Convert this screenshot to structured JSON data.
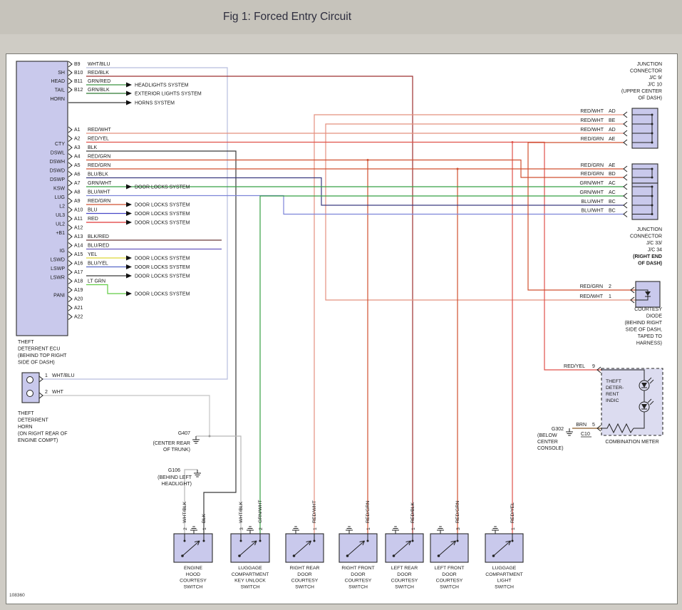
{
  "title": "Fig 1: Forced Entry Circuit",
  "figure_id": "108360",
  "palette": {
    "page_bg": "#cfccc5",
    "titlebar_bg": "#c6c3bb",
    "title_color": "#2e2e3e",
    "diagram_bg": "#ffffff",
    "component_fill": "#c9c9ec",
    "component_border": "#2a2a2a",
    "text_color": "#1a1a1a",
    "wires": {
      "WHT/BLU": "#b8bede",
      "RED/BLK": "#9c3030",
      "GRN/RED": "#3c9440",
      "GRN/BLK": "#2f7a33",
      "RED/WHT": "#e4907e",
      "RED/YEL": "#e0524a",
      "BLK": "#3a3a3a",
      "RED/GRN": "#d05030",
      "BLU/BLK": "#3a3a80",
      "GRN/WHT": "#36a044",
      "BLU/WHT": "#7d84d8",
      "BLU": "#4747c7",
      "RED": "#e03838",
      "BLK/RED": "#6a3a3a",
      "BLU/RED": "#6858c0",
      "YEL": "#ddd838",
      "BLU/YEL": "#5868c8",
      "LT GRN": "#62cc44",
      "WHT": "#c4c4c4",
      "WHT/BLK": "#b8b8b8",
      "BRN": "#8a5a28"
    }
  },
  "ecu": {
    "left_pins": [
      "SH",
      "HEAD",
      "TAIL",
      "HORN",
      "CTY",
      "DSWL",
      "DSWH",
      "DSWD",
      "DSWP",
      "KSW",
      "LUG",
      "L2",
      "UL3",
      "UL2",
      "+B1",
      "IG",
      "LSWD",
      "LSWP",
      "LSWR",
      "PANI"
    ],
    "connector_pins": [
      {
        "id": "B9",
        "wire": "WHT/BLU"
      },
      {
        "id": "B10",
        "wire": "RED/BLK"
      },
      {
        "id": "B11",
        "wire": "GRN/RED"
      },
      {
        "id": "B12",
        "wire": "GRN/BLK"
      },
      {
        "id": "A1",
        "wire": "RED/WHT"
      },
      {
        "id": "A2",
        "wire": "RED/YEL"
      },
      {
        "id": "A3",
        "wire": "BLK"
      },
      {
        "id": "A4",
        "wire": "RED/GRN"
      },
      {
        "id": "A5",
        "wire": "RED/GRN"
      },
      {
        "id": "A6",
        "wire": "BLU/BLK"
      },
      {
        "id": "A7",
        "wire": "GRN/WHT"
      },
      {
        "id": "A8",
        "wire": "BLU/WHT"
      },
      {
        "id": "A9",
        "wire": "RED/GRN"
      },
      {
        "id": "A10",
        "wire": "BLU"
      },
      {
        "id": "A11",
        "wire": "RED"
      },
      {
        "id": "A12",
        "wire": ""
      },
      {
        "id": "A13",
        "wire": "BLK/RED"
      },
      {
        "id": "A14",
        "wire": "BLU/RED"
      },
      {
        "id": "A15",
        "wire": "YEL"
      },
      {
        "id": "A16",
        "wire": "BLU/YEL"
      },
      {
        "id": "A17",
        "wire": ""
      },
      {
        "id": "A18",
        "wire": "LT GRN"
      },
      {
        "id": "A19",
        "wire": ""
      },
      {
        "id": "A20",
        "wire": ""
      },
      {
        "id": "A21",
        "wire": ""
      },
      {
        "id": "A22",
        "wire": ""
      }
    ],
    "caption": [
      "THEFT",
      "DETERRENT ECU",
      "(BEHIND TOP RIGHT",
      "SIDE OF DASH)"
    ]
  },
  "system_links": [
    "HEADLIGHTS SYSTEM",
    "EXTERIOR LIGHTS SYSTEM",
    "HORNS SYSTEM",
    "DOOR LOCKS SYSTEM",
    "DOOR LOCKS SYSTEM",
    "DOOR LOCKS SYSTEM",
    "DOOR LOCKS SYSTEM",
    "DOOR LOCKS SYSTEM",
    "DOOR LOCKS SYSTEM",
    "DOOR LOCKS SYSTEM",
    "DOOR LOCKS SYSTEM"
  ],
  "junction_top": {
    "caption": [
      "JUNCTION",
      "CONNECTOR",
      "J/C 9/",
      "J/C 10",
      "(UPPER CENTER",
      "OF DASH)"
    ],
    "rows": [
      {
        "wire": "RED/WHT",
        "code": "AD"
      },
      {
        "wire": "RED/WHT",
        "code": "BE"
      },
      {
        "wire": "RED/WHT",
        "code": "AD"
      },
      {
        "wire": "RED/GRN",
        "code": "AE"
      },
      {
        "wire": "RED/GRN",
        "code": "AE"
      },
      {
        "wire": "RED/GRN",
        "code": "BD"
      },
      {
        "wire": "GRN/WHT",
        "code": "AC"
      },
      {
        "wire": "GRN/WHT",
        "code": "AC"
      },
      {
        "wire": "BLU/WHT",
        "code": "BC"
      },
      {
        "wire": "BLU/WHT",
        "code": "BC"
      }
    ]
  },
  "junction_mid_caption": [
    "JUNCTION",
    "CONNECTOR",
    "J/C 33/",
    "J/C 34",
    "(RIGHT END",
    "OF DASH)"
  ],
  "horn": {
    "pins": [
      {
        "num": "1",
        "wire": "WHT/BLU"
      },
      {
        "num": "2",
        "wire": "WHT"
      }
    ],
    "caption": [
      "THEFT",
      "DETERRENT",
      "HORN",
      "(ON RIGHT REAR OF",
      "ENGINE COMPT)"
    ]
  },
  "diode": {
    "pins": [
      {
        "wire": "RED/GRN",
        "num": "2"
      },
      {
        "wire": "RED/WHT",
        "num": "1"
      }
    ],
    "caption": [
      "COURTESY",
      "DIODE",
      "(BEHIND RIGHT",
      "SIDE OF DASH,",
      "TAPED TO",
      "HARNESS)"
    ]
  },
  "indicator": {
    "label_lines": [
      "THEFT",
      "DETER-",
      "RENT",
      "INDIC"
    ],
    "pins": [
      {
        "wire": "RED/YEL",
        "num": "9"
      },
      {
        "wire": "BRN",
        "num": "5"
      }
    ],
    "connector": "C10",
    "caption": "COMBINATION METER"
  },
  "grounds": [
    {
      "id": "G407",
      "caption": [
        "(CENTER REAR",
        "OF TRUNK)"
      ]
    },
    {
      "id": "G106",
      "caption": [
        "(BEHIND LEFT",
        "HEADLIGHT)"
      ]
    },
    {
      "id": "G302",
      "caption": [
        "(BELOW",
        "CENTER",
        "CONSOLE)"
      ]
    }
  ],
  "switches": [
    {
      "caption": [
        "ENGINE",
        "HOOD",
        "COURTESY",
        "SWITCH"
      ],
      "pins": [
        {
          "num": "2",
          "wire": "WHT/BLK"
        },
        {
          "num": "1",
          "wire": "BLK"
        }
      ]
    },
    {
      "caption": [
        "LUGGAGE",
        "COMPARTMENT",
        "KEY UNLOCK",
        "SWITCH"
      ],
      "pins": [
        {
          "num": "3",
          "wire": "WHT/BLK"
        },
        {
          "num": "2",
          "wire": "GRN/WHT"
        }
      ]
    },
    {
      "caption": [
        "RIGHT REAR",
        "DOOR",
        "COURTESY",
        "SWITCH"
      ],
      "pins": [
        {
          "num": "1",
          "wire": "RED/WHT"
        }
      ]
    },
    {
      "caption": [
        "RIGHT FRONT",
        "DOOR",
        "COURTESY",
        "SWITCH"
      ],
      "pins": [
        {
          "num": "1",
          "wire": "RED/GRN"
        }
      ]
    },
    {
      "caption": [
        "LEFT REAR",
        "DOOR",
        "COURTESY",
        "SWITCH"
      ],
      "pins": [
        {
          "num": "1",
          "wire": "RED/BLK"
        }
      ]
    },
    {
      "caption": [
        "LEFT FRONT",
        "DOOR",
        "COURTESY",
        "SWITCH"
      ],
      "pins": [
        {
          "num": "3",
          "wire": "RED/GRN"
        }
      ]
    },
    {
      "caption": [
        "LUGGAGE",
        "COMPARTMENT",
        "LIGHT",
        "SWITCH"
      ],
      "pins": [
        {
          "num": "1",
          "wire": "RED/YEL"
        }
      ]
    }
  ]
}
